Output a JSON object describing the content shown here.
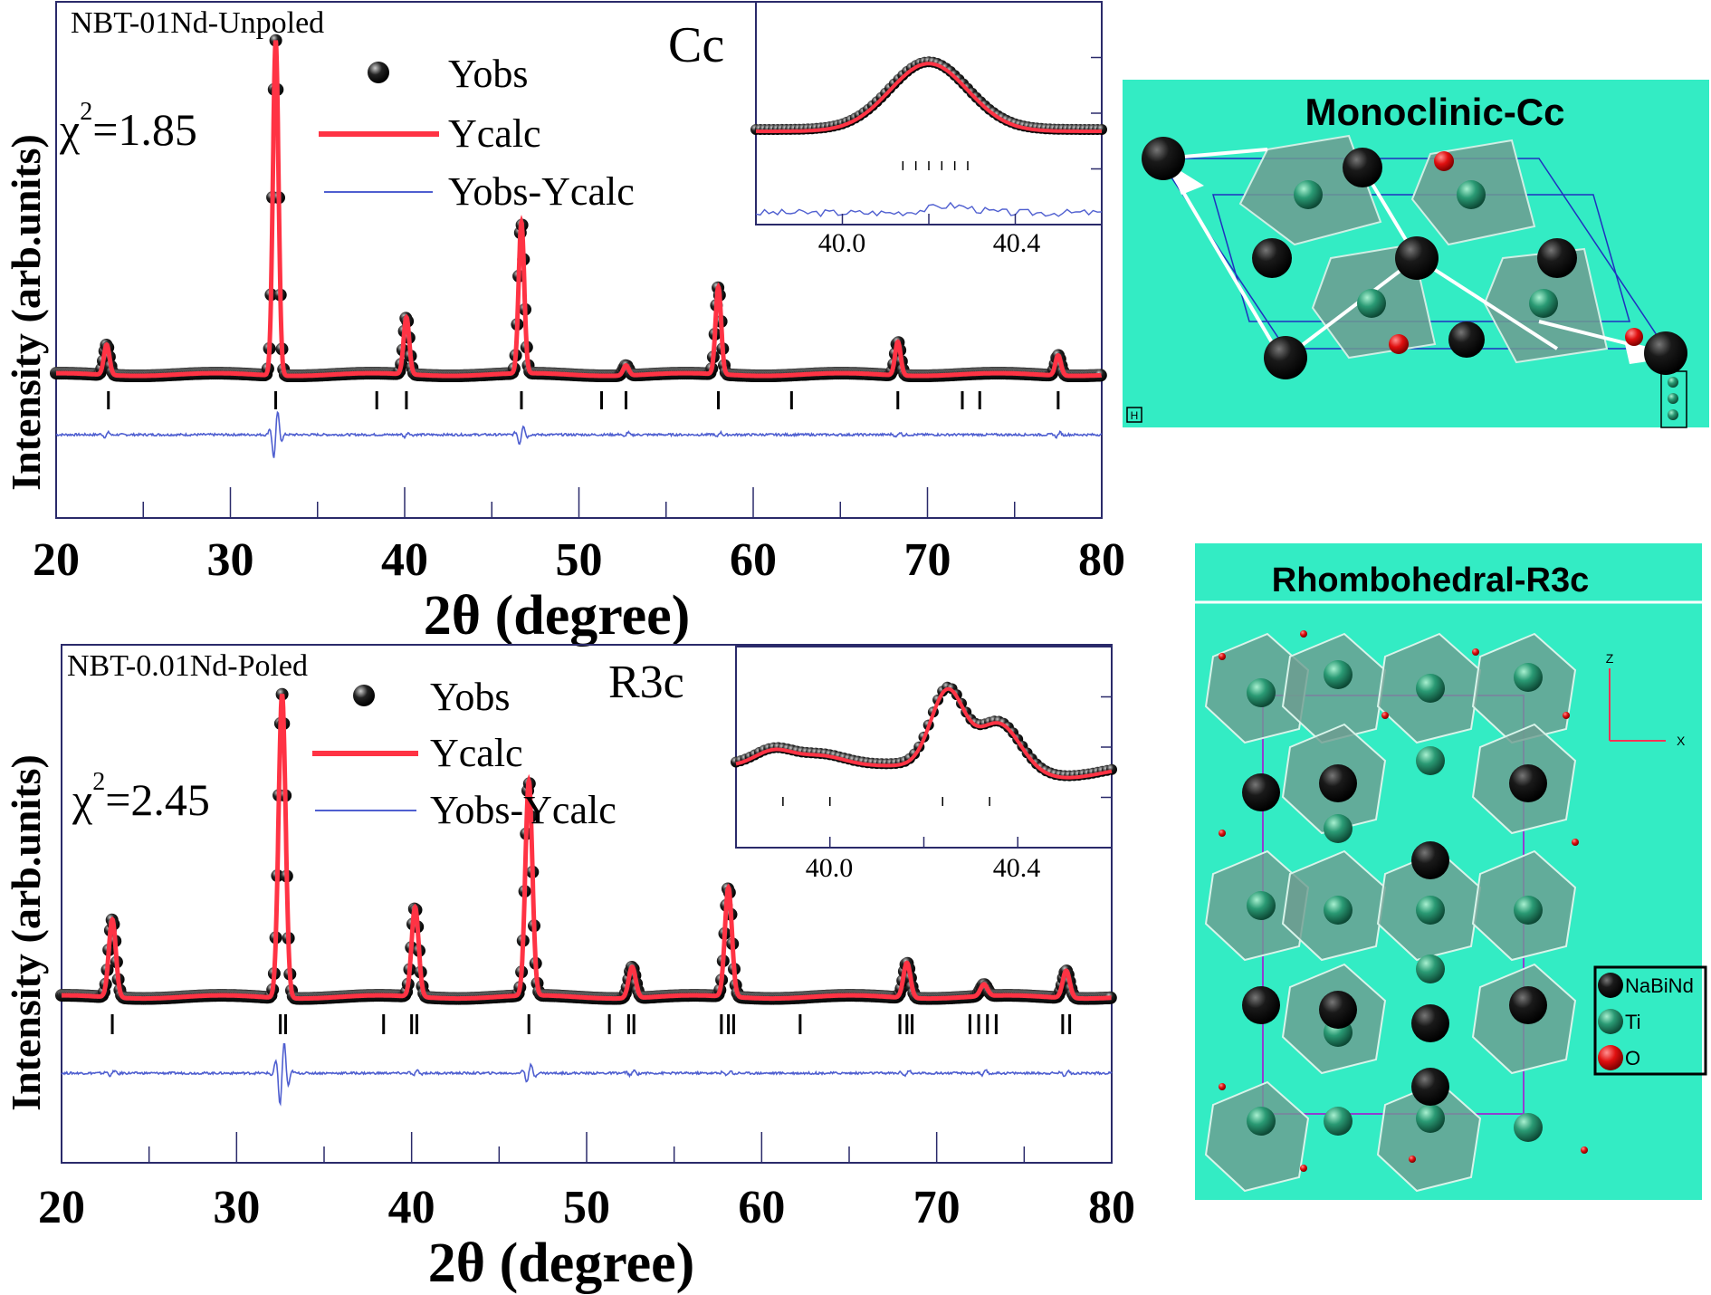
{
  "chart_data": [
    {
      "type": "line",
      "sample_label": "NBT-01Nd-Unpoled",
      "space_group": "Cc",
      "chi_symbol": "χ",
      "chi_exp": "2",
      "chi_value": "=1.85",
      "xlabel": "2θ (degree)",
      "ylabel": "Intensity (arb.units)",
      "xlim": [
        20,
        80
      ],
      "xticks": [
        "20",
        "30",
        "40",
        "50",
        "60",
        "70",
        "80"
      ],
      "legend": [
        "Yobs",
        "Ycalc",
        "Yobs-Ycalc"
      ],
      "peaks": [
        [
          22.9,
          0.09
        ],
        [
          32.6,
          1.0
        ],
        [
          40.1,
          0.17
        ],
        [
          46.7,
          0.45
        ],
        [
          52.7,
          0.03
        ],
        [
          58.0,
          0.26
        ],
        [
          68.3,
          0.1
        ],
        [
          77.5,
          0.06
        ]
      ],
      "bragg_ticks": [
        23.0,
        32.6,
        38.4,
        40.1,
        46.7,
        51.3,
        52.7,
        58.0,
        62.2,
        68.3,
        72.0,
        73.0,
        77.5
      ],
      "inset": {
        "xlim": [
          39.8,
          40.6
        ],
        "xticks": [
          "40.0",
          "40.4"
        ]
      }
    },
    {
      "type": "line",
      "sample_label": "NBT-0.01Nd-Poled",
      "space_group": "R3c",
      "chi_symbol": "χ",
      "chi_exp": "2",
      "chi_value": "=2.45",
      "xlabel": "2θ (degree)",
      "ylabel": "Intensity (arb.units)",
      "xlim": [
        20,
        80
      ],
      "xticks": [
        "20",
        "30",
        "40",
        "50",
        "60",
        "70",
        "80"
      ],
      "legend": [
        "Yobs",
        "Ycalc",
        "Yobs-Ycalc"
      ],
      "peaks": [
        [
          22.9,
          0.2
        ],
        [
          32.6,
          0.78
        ],
        [
          40.2,
          0.23
        ],
        [
          46.7,
          0.55
        ],
        [
          52.6,
          0.08
        ],
        [
          58.1,
          0.28
        ],
        [
          68.3,
          0.09
        ],
        [
          72.7,
          0.03
        ],
        [
          77.4,
          0.07
        ]
      ],
      "bragg_ticks": [
        22.9,
        32.5,
        32.8,
        38.4,
        40.0,
        40.3,
        46.7,
        51.3,
        52.4,
        52.7,
        57.7,
        58.1,
        58.4,
        62.2,
        67.9,
        68.3,
        68.6,
        71.9,
        72.4,
        72.9,
        73.4,
        77.2,
        77.6
      ],
      "inset": {
        "xlim": [
          39.8,
          40.6
        ],
        "xticks": [
          "40.0",
          "40.4"
        ]
      }
    }
  ],
  "structures": {
    "top": {
      "title": "Monoclinic-Cc",
      "corner_mark": "H"
    },
    "bottom": {
      "title": "Rhombohedral-R3c",
      "axis_z": "Z",
      "axis_x": "X"
    },
    "legend": [
      "NaBiNd",
      "Ti",
      "O"
    ]
  },
  "colors": {
    "ycalc": "#ff3344",
    "diff": "#4f5fd0",
    "obs": "#111111",
    "structure_bg": "#33ecc4",
    "octahedron": "#6e9c90",
    "ti_atom": "#1f8a68",
    "o_atom": "#e01010",
    "na_atom": "#050505"
  }
}
